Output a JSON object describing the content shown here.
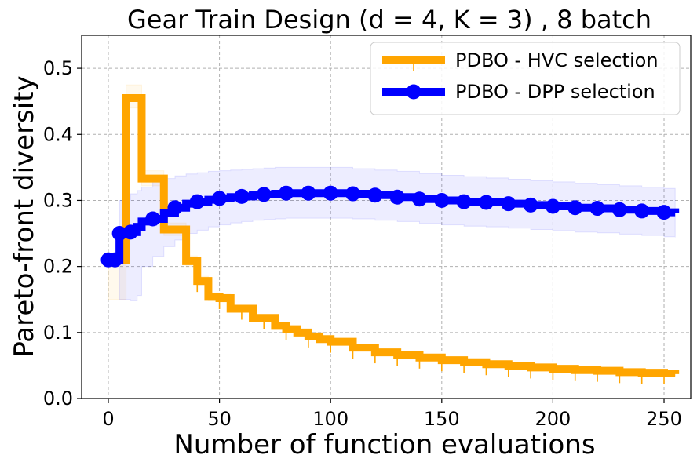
{
  "chart_data": {
    "type": "line",
    "title": "Gear Train Design (d = 4, K = 3) , 8 batch",
    "xlabel": "Number of function evaluations",
    "ylabel": "Pareto-front diversity",
    "xlim": [
      -12,
      262
    ],
    "ylim": [
      0.0,
      0.55
    ],
    "xticks": [
      0,
      50,
      100,
      150,
      200,
      250
    ],
    "yticks": [
      0.0,
      0.1,
      0.2,
      0.3,
      0.4,
      0.5
    ],
    "grid": true,
    "legend_position": "top-right",
    "series": [
      {
        "name": "PDBO - HVC selection",
        "color": "#ffa500",
        "marker": "tick",
        "x": [
          0,
          8,
          10,
          12,
          15,
          20,
          25,
          30,
          35,
          40,
          45,
          50,
          55,
          60,
          65,
          70,
          75,
          80,
          85,
          90,
          95,
          100,
          110,
          120,
          130,
          140,
          150,
          160,
          170,
          180,
          190,
          200,
          210,
          220,
          230,
          240,
          250,
          255
        ],
        "y": [
          0.21,
          0.455,
          0.455,
          0.455,
          0.333,
          0.333,
          0.256,
          0.256,
          0.208,
          0.178,
          0.154,
          0.152,
          0.136,
          0.136,
          0.122,
          0.122,
          0.11,
          0.105,
          0.1,
          0.094,
          0.09,
          0.086,
          0.077,
          0.07,
          0.066,
          0.062,
          0.058,
          0.055,
          0.052,
          0.049,
          0.047,
          0.045,
          0.043,
          0.042,
          0.04,
          0.039,
          0.038,
          0.037
        ],
        "band_upper": [
          0.21,
          0.475,
          0.475,
          0.475,
          0.345,
          0.345,
          0.266,
          0.266,
          0.216,
          0.185,
          0.16,
          0.158,
          0.141,
          0.141,
          0.127,
          0.127,
          0.114,
          0.109,
          0.104,
          0.098,
          0.094,
          0.09,
          0.081,
          0.074,
          0.07,
          0.065,
          0.061,
          0.058,
          0.055,
          0.052,
          0.05,
          0.048,
          0.046,
          0.045,
          0.043,
          0.042,
          0.041,
          0.04
        ],
        "band_lower": [
          0.15,
          0.44,
          0.44,
          0.44,
          0.322,
          0.322,
          0.247,
          0.247,
          0.2,
          0.171,
          0.148,
          0.146,
          0.131,
          0.131,
          0.117,
          0.117,
          0.106,
          0.101,
          0.096,
          0.09,
          0.086,
          0.082,
          0.073,
          0.066,
          0.062,
          0.059,
          0.055,
          0.052,
          0.049,
          0.046,
          0.044,
          0.042,
          0.04,
          0.039,
          0.037,
          0.036,
          0.035,
          0.034
        ]
      },
      {
        "name": "PDBO - DPP selection",
        "color": "#0000ff",
        "marker": "circle",
        "x": [
          0,
          3,
          5,
          10,
          13,
          15,
          20,
          25,
          30,
          35,
          40,
          45,
          50,
          55,
          60,
          65,
          70,
          75,
          80,
          85,
          90,
          95,
          100,
          110,
          120,
          130,
          140,
          150,
          160,
          170,
          180,
          190,
          200,
          210,
          220,
          230,
          240,
          250,
          255
        ],
        "y": [
          0.21,
          0.21,
          0.25,
          0.252,
          0.26,
          0.268,
          0.272,
          0.281,
          0.289,
          0.295,
          0.298,
          0.301,
          0.303,
          0.305,
          0.306,
          0.308,
          0.309,
          0.31,
          0.311,
          0.311,
          0.311,
          0.311,
          0.311,
          0.31,
          0.308,
          0.305,
          0.302,
          0.3,
          0.298,
          0.297,
          0.295,
          0.293,
          0.291,
          0.289,
          0.288,
          0.286,
          0.284,
          0.282,
          0.281
        ],
        "band_upper": [
          0.21,
          0.21,
          0.3,
          0.31,
          0.315,
          0.32,
          0.328,
          0.333,
          0.337,
          0.34,
          0.342,
          0.344,
          0.345,
          0.346,
          0.347,
          0.348,
          0.349,
          0.35,
          0.35,
          0.35,
          0.35,
          0.35,
          0.35,
          0.348,
          0.346,
          0.344,
          0.341,
          0.338,
          0.336,
          0.334,
          0.332,
          0.33,
          0.328,
          0.326,
          0.324,
          0.322,
          0.32,
          0.318,
          0.317
        ],
        "band_lower": [
          0.2,
          0.2,
          0.15,
          0.148,
          0.156,
          0.2,
          0.215,
          0.23,
          0.24,
          0.25,
          0.255,
          0.26,
          0.263,
          0.266,
          0.268,
          0.27,
          0.271,
          0.272,
          0.273,
          0.273,
          0.273,
          0.273,
          0.273,
          0.272,
          0.27,
          0.268,
          0.265,
          0.263,
          0.261,
          0.26,
          0.258,
          0.256,
          0.254,
          0.252,
          0.251,
          0.249,
          0.247,
          0.245,
          0.244
        ]
      }
    ]
  }
}
